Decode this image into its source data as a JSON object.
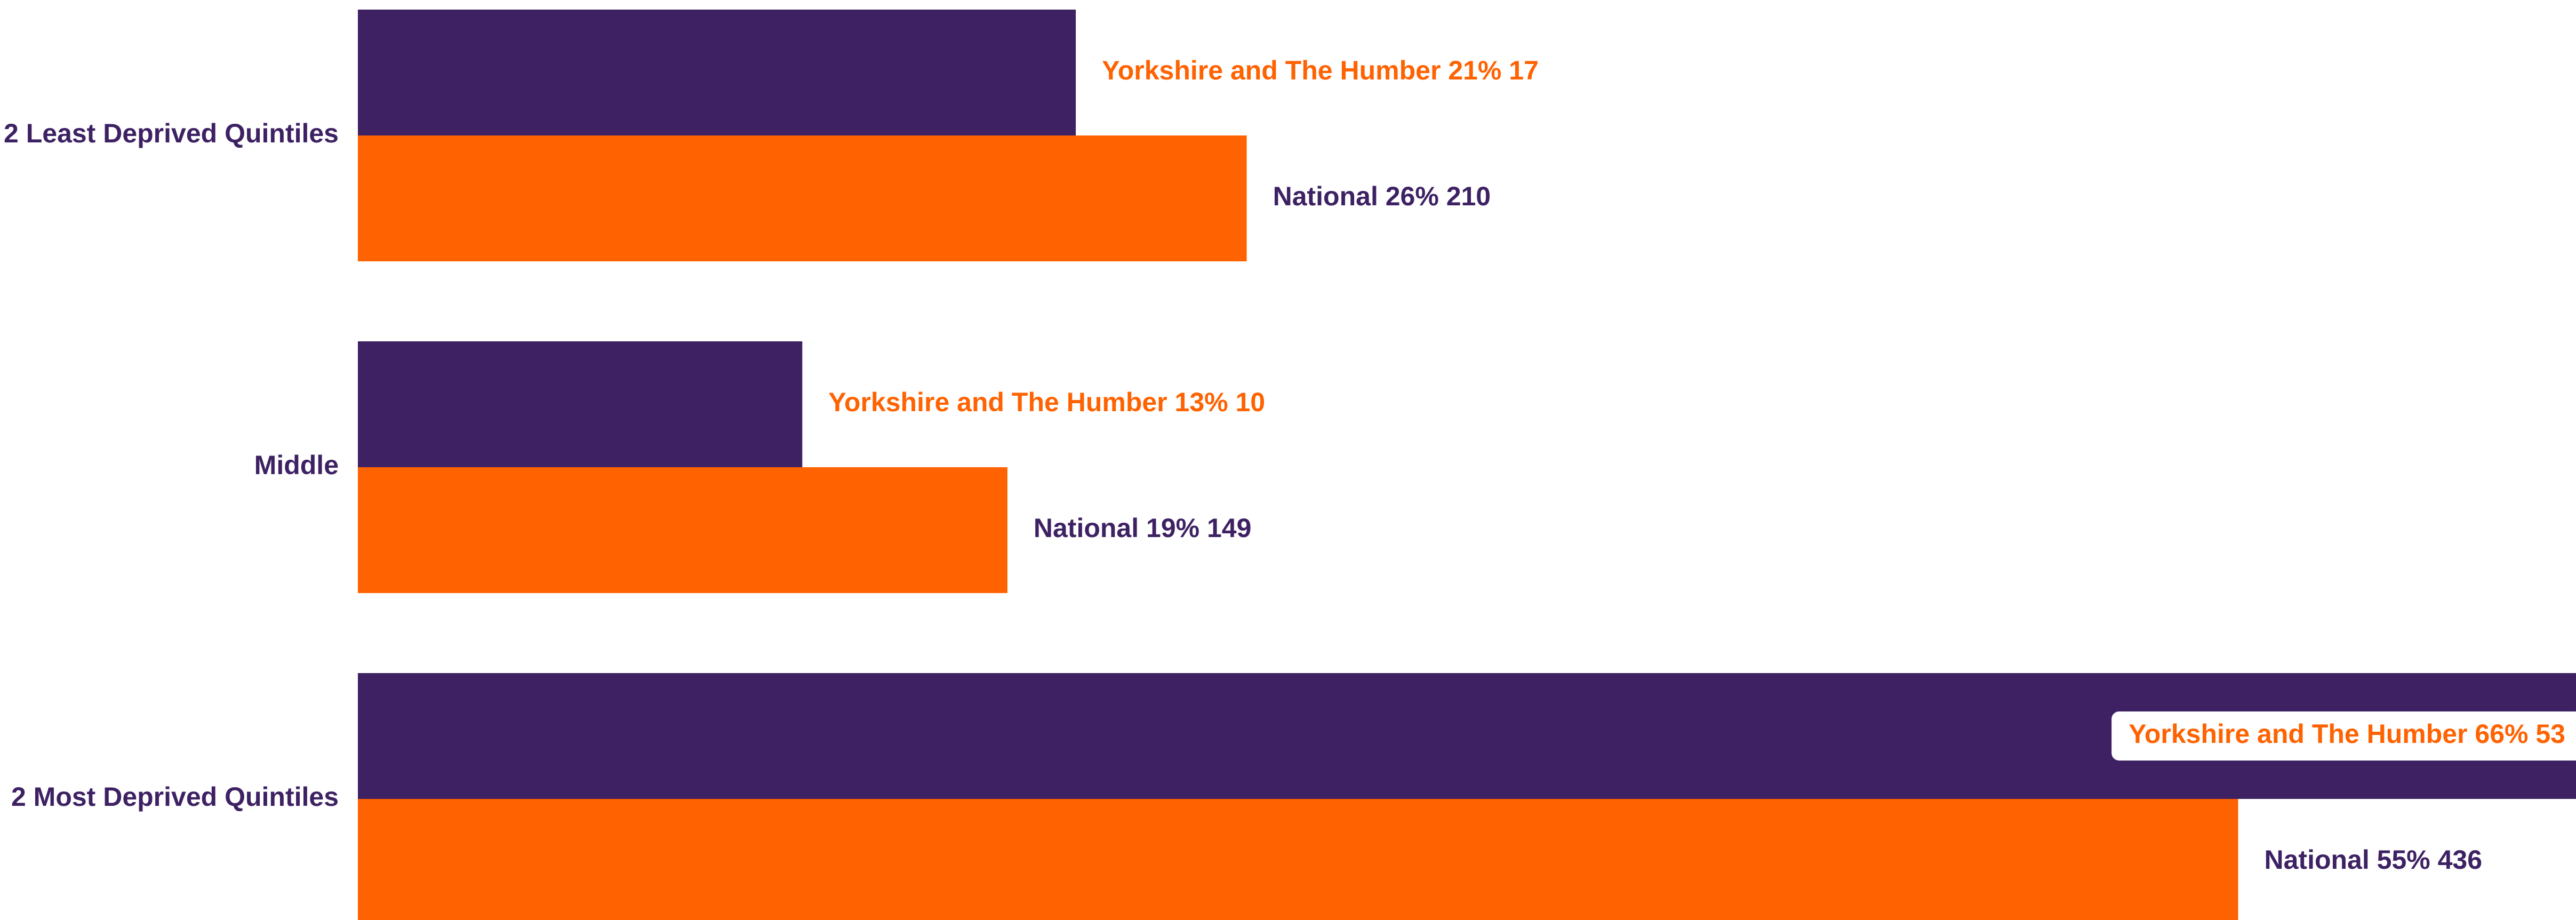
{
  "chart_data": {
    "type": "bar",
    "orientation": "horizontal",
    "categories": [
      "2 Least Deprived Quintiles",
      "Middle",
      "2 Most Deprived Quintiles"
    ],
    "series": [
      {
        "name": "Yorkshire and The Humber",
        "color": "#3d2163",
        "values": [
          21,
          13,
          66
        ],
        "value_labels": [
          "Yorkshire and The Humber 21% 17",
          "Yorkshire and The Humber 13% 10",
          "Yorkshire and The Humber 66% 53"
        ]
      },
      {
        "name": "National",
        "color": "#ff6200",
        "values": [
          26,
          19,
          55
        ],
        "value_labels": [
          "National 26% 210",
          "National 19% 149",
          "National 55% 436"
        ]
      }
    ]
  }
}
